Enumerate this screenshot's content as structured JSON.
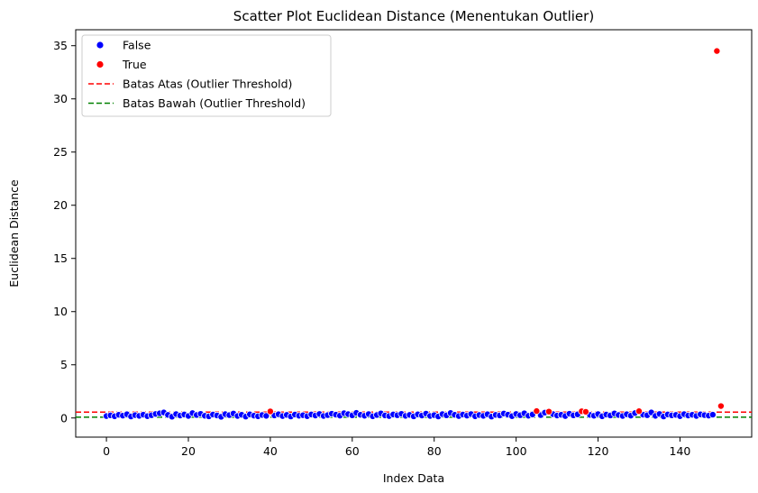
{
  "chart_data": {
    "type": "scatter",
    "title": "Scatter Plot Euclidean Distance (Menentukan Outlier)",
    "xlabel": "Index Data",
    "ylabel": "Euclidean Distance",
    "xlim": [
      -7.5,
      157.5
    ],
    "ylim": [
      -1.8,
      36.5
    ],
    "xticks": [
      0,
      20,
      40,
      60,
      80,
      100,
      120,
      140
    ],
    "yticks": [
      0,
      5,
      10,
      15,
      20,
      25,
      30,
      35
    ],
    "grid": false,
    "legend_position": "top-left",
    "series": [
      {
        "name": "False",
        "color": "#0000ff",
        "points": [
          [
            0,
            0.18
          ],
          [
            1,
            0.25
          ],
          [
            2,
            0.16
          ],
          [
            3,
            0.3
          ],
          [
            4,
            0.22
          ],
          [
            5,
            0.35
          ],
          [
            6,
            0.14
          ],
          [
            7,
            0.27
          ],
          [
            8,
            0.2
          ],
          [
            9,
            0.31
          ],
          [
            10,
            0.17
          ],
          [
            11,
            0.26
          ],
          [
            12,
            0.38
          ],
          [
            13,
            0.44
          ],
          [
            14,
            0.52
          ],
          [
            15,
            0.29
          ],
          [
            16,
            0.12
          ],
          [
            17,
            0.37
          ],
          [
            18,
            0.23
          ],
          [
            19,
            0.33
          ],
          [
            20,
            0.19
          ],
          [
            21,
            0.46
          ],
          [
            22,
            0.28
          ],
          [
            23,
            0.39
          ],
          [
            24,
            0.21
          ],
          [
            25,
            0.15
          ],
          [
            26,
            0.32
          ],
          [
            27,
            0.24
          ],
          [
            28,
            0.11
          ],
          [
            29,
            0.36
          ],
          [
            30,
            0.27
          ],
          [
            31,
            0.42
          ],
          [
            32,
            0.19
          ],
          [
            33,
            0.3
          ],
          [
            34,
            0.13
          ],
          [
            35,
            0.34
          ],
          [
            36,
            0.22
          ],
          [
            37,
            0.16
          ],
          [
            38,
            0.28
          ],
          [
            39,
            0.2
          ],
          [
            41,
            0.24
          ],
          [
            42,
            0.35
          ],
          [
            43,
            0.18
          ],
          [
            44,
            0.29
          ],
          [
            45,
            0.14
          ],
          [
            46,
            0.32
          ],
          [
            47,
            0.21
          ],
          [
            48,
            0.26
          ],
          [
            49,
            0.17
          ],
          [
            50,
            0.33
          ],
          [
            51,
            0.23
          ],
          [
            52,
            0.38
          ],
          [
            53,
            0.19
          ],
          [
            54,
            0.27
          ],
          [
            55,
            0.4
          ],
          [
            56,
            0.31
          ],
          [
            57,
            0.22
          ],
          [
            58,
            0.45
          ],
          [
            59,
            0.36
          ],
          [
            60,
            0.25
          ],
          [
            61,
            0.48
          ],
          [
            62,
            0.3
          ],
          [
            63,
            0.21
          ],
          [
            64,
            0.37
          ],
          [
            65,
            0.16
          ],
          [
            66,
            0.28
          ],
          [
            67,
            0.43
          ],
          [
            68,
            0.24
          ],
          [
            69,
            0.18
          ],
          [
            70,
            0.33
          ],
          [
            71,
            0.26
          ],
          [
            72,
            0.39
          ],
          [
            73,
            0.2
          ],
          [
            74,
            0.29
          ],
          [
            75,
            0.15
          ],
          [
            76,
            0.34
          ],
          [
            77,
            0.23
          ],
          [
            78,
            0.41
          ],
          [
            79,
            0.19
          ],
          [
            80,
            0.27
          ],
          [
            81,
            0.14
          ],
          [
            82,
            0.36
          ],
          [
            83,
            0.25
          ],
          [
            84,
            0.47
          ],
          [
            85,
            0.3
          ],
          [
            86,
            0.18
          ],
          [
            87,
            0.32
          ],
          [
            88,
            0.22
          ],
          [
            89,
            0.37
          ],
          [
            90,
            0.16
          ],
          [
            91,
            0.28
          ],
          [
            92,
            0.2
          ],
          [
            93,
            0.35
          ],
          [
            94,
            0.13
          ],
          [
            95,
            0.29
          ],
          [
            96,
            0.24
          ],
          [
            97,
            0.42
          ],
          [
            98,
            0.31
          ],
          [
            99,
            0.17
          ],
          [
            100,
            0.38
          ],
          [
            101,
            0.26
          ],
          [
            102,
            0.44
          ],
          [
            103,
            0.21
          ],
          [
            104,
            0.33
          ],
          [
            106,
            0.27
          ],
          [
            107,
            0.5
          ],
          [
            109,
            0.36
          ],
          [
            110,
            0.23
          ],
          [
            111,
            0.3
          ],
          [
            112,
            0.18
          ],
          [
            113,
            0.4
          ],
          [
            114,
            0.25
          ],
          [
            115,
            0.34
          ],
          [
            118,
            0.29
          ],
          [
            119,
            0.21
          ],
          [
            120,
            0.37
          ],
          [
            121,
            0.16
          ],
          [
            122,
            0.32
          ],
          [
            123,
            0.24
          ],
          [
            124,
            0.43
          ],
          [
            125,
            0.28
          ],
          [
            126,
            0.19
          ],
          [
            127,
            0.35
          ],
          [
            128,
            0.22
          ],
          [
            129,
            0.46
          ],
          [
            131,
            0.31
          ],
          [
            132,
            0.26
          ],
          [
            133,
            0.52
          ],
          [
            134,
            0.2
          ],
          [
            135,
            0.38
          ],
          [
            136,
            0.14
          ],
          [
            137,
            0.33
          ],
          [
            138,
            0.25
          ],
          [
            139,
            0.29
          ],
          [
            140,
            0.17
          ],
          [
            141,
            0.36
          ],
          [
            142,
            0.23
          ],
          [
            143,
            0.3
          ],
          [
            144,
            0.19
          ],
          [
            145,
            0.34
          ],
          [
            146,
            0.27
          ],
          [
            147,
            0.22
          ],
          [
            148,
            0.31
          ]
        ]
      },
      {
        "name": "True",
        "color": "#ff0000",
        "points": [
          [
            40,
            0.62
          ],
          [
            105,
            0.65
          ],
          [
            108,
            0.6
          ],
          [
            116,
            0.63
          ],
          [
            117,
            0.58
          ],
          [
            130,
            0.64
          ],
          [
            149,
            34.5
          ],
          [
            150,
            1.12
          ]
        ]
      }
    ],
    "threshold_lines": [
      {
        "name": "Batas Atas (Outlier Threshold)",
        "y": 0.55,
        "color": "#ff0000",
        "style": "dashed"
      },
      {
        "name": "Batas Bawah (Outlier Threshold)",
        "y": 0.08,
        "color": "#008000",
        "style": "dashed"
      }
    ]
  }
}
